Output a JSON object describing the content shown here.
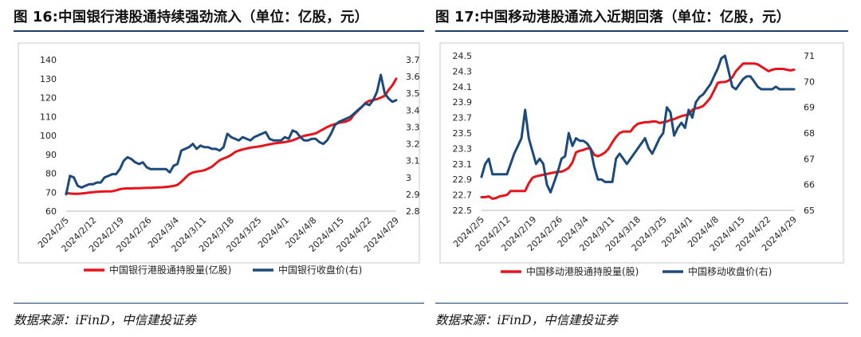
{
  "chart_data": [
    {
      "type": "line",
      "title": "图 16:中国银行港股通持续强劲流入（单位：亿股，元）",
      "source": "数据来源：iFinD，中信建投证券",
      "categories": [
        "2024/2/5",
        "2024/2/12",
        "2024/2/19",
        "2024/2/26",
        "2024/3/4",
        "2024/3/11",
        "2024/3/18",
        "2024/3/25",
        "2024/4/1",
        "2024/4/8",
        "2024/4/15",
        "2024/4/22",
        "2024/4/29"
      ],
      "y_left": {
        "min": 60,
        "max": 140,
        "ticks": [
          "60",
          "70",
          "80",
          "90",
          "100",
          "110",
          "120",
          "130",
          "140"
        ]
      },
      "y_right": {
        "min": 2.8,
        "max": 3.7,
        "ticks": [
          "2.8",
          "2.9",
          "3",
          "3.1",
          "3.2",
          "3.3",
          "3.4",
          "3.5",
          "3.6",
          "3.7"
        ]
      },
      "legend_position": "bottom",
      "series": [
        {
          "name": "中国银行港股通持股量(亿股)",
          "axis": "left",
          "color": "#e8141b",
          "x": [
            0,
            1,
            2,
            3,
            4,
            5,
            6,
            7,
            8,
            9,
            10,
            11,
            12,
            13,
            14,
            15,
            16,
            17,
            18,
            19,
            20,
            21,
            22,
            23,
            24,
            25,
            26,
            27,
            28,
            29,
            30,
            31,
            32,
            33,
            34,
            35,
            36,
            37,
            38,
            39,
            40,
            41,
            42,
            43,
            44,
            45,
            46,
            47,
            48,
            49,
            50,
            51,
            52,
            53,
            54,
            55,
            56,
            57,
            58,
            59,
            60,
            61,
            62,
            63,
            64,
            65,
            66,
            67,
            68,
            69,
            70,
            71,
            72,
            73,
            74,
            75,
            76,
            77,
            78,
            79,
            80,
            81,
            82,
            83,
            84,
            85,
            86
          ],
          "values": [
            69.5,
            69.3,
            69.2,
            69.2,
            69.3,
            69.5,
            69.8,
            70.0,
            70.2,
            70.3,
            70.4,
            70.4,
            70.5,
            71.0,
            71.6,
            71.9,
            72.0,
            72.0,
            72.1,
            72.1,
            72.2,
            72.3,
            72.3,
            72.4,
            72.5,
            72.6,
            72.8,
            73.0,
            73.3,
            73.9,
            75.5,
            77.5,
            79.4,
            80.4,
            80.9,
            81.2,
            81.6,
            82.5,
            83.5,
            85.2,
            86.9,
            87.8,
            88.6,
            89.7,
            91.2,
            92.0,
            92.6,
            93.1,
            93.5,
            93.8,
            94.1,
            94.4,
            94.9,
            95.3,
            95.7,
            96.0,
            96.2,
            96.5,
            96.9,
            97.4,
            98.2,
            99.1,
            99.8,
            100.2,
            100.6,
            101.1,
            102.2,
            103.3,
            104.4,
            105.3,
            106.0,
            106.6,
            107.0,
            107.4,
            108.3,
            111.0,
            113.0,
            115.0,
            117.2,
            118.3,
            118.7,
            119.2,
            120.0,
            121.0,
            124.0,
            126.5,
            130.0
          ]
        },
        {
          "name": "中国银行收盘价(右)",
          "axis": "right",
          "color": "#1c4a7a",
          "x": [
            0,
            1,
            2,
            3,
            4,
            5,
            6,
            7,
            8,
            9,
            10,
            11,
            12,
            13,
            14,
            15,
            16,
            17,
            18,
            19,
            20,
            21,
            22,
            23,
            24,
            25,
            26,
            27,
            28,
            29,
            30,
            31,
            32,
            33,
            34,
            35,
            36,
            37,
            38,
            39,
            40,
            41,
            42,
            43,
            44,
            45,
            46,
            47,
            48,
            49,
            50,
            51,
            52,
            53,
            54,
            55,
            56,
            57,
            58,
            59,
            60,
            61,
            62,
            63,
            64,
            65,
            66,
            67,
            68,
            69,
            70,
            71,
            72,
            73,
            74,
            75,
            76,
            77,
            78,
            79,
            80,
            81,
            82,
            83,
            84,
            85,
            86
          ],
          "values": [
            2.9,
            3.01,
            3.0,
            2.95,
            2.94,
            2.95,
            2.96,
            2.96,
            2.97,
            2.97,
            3.0,
            3.01,
            3.02,
            3.02,
            3.05,
            3.1,
            3.12,
            3.11,
            3.09,
            3.08,
            3.09,
            3.06,
            3.05,
            3.05,
            3.05,
            3.05,
            3.05,
            3.03,
            3.07,
            3.08,
            3.16,
            3.17,
            3.18,
            3.2,
            3.17,
            3.19,
            3.18,
            3.18,
            3.17,
            3.17,
            3.16,
            3.18,
            3.26,
            3.24,
            3.23,
            3.22,
            3.24,
            3.23,
            3.22,
            3.24,
            3.25,
            3.26,
            3.27,
            3.23,
            3.22,
            3.22,
            3.22,
            3.24,
            3.23,
            3.28,
            3.27,
            3.24,
            3.22,
            3.22,
            3.23,
            3.23,
            3.21,
            3.2,
            3.22,
            3.26,
            3.31,
            3.33,
            3.34,
            3.35,
            3.36,
            3.38,
            3.4,
            3.42,
            3.44,
            3.43,
            3.46,
            3.51,
            3.61,
            3.5,
            3.47,
            3.45,
            3.46
          ]
        }
      ]
    },
    {
      "type": "line",
      "title": "图 17:中国移动港股通流入近期回落（单位：亿股，元）",
      "source": "数据来源：iFinD，中信建投证券",
      "categories": [
        "2024/2/5",
        "2024/2/12",
        "2024/2/19",
        "2024/2/26",
        "2024/3/4",
        "2024/3/11",
        "2024/3/18",
        "2024/3/25",
        "2024/4/1",
        "2024/4/8",
        "2024/4/15",
        "2024/4/22",
        "2024/4/29"
      ],
      "y_left": {
        "min": 22.5,
        "max": 24.5,
        "ticks": [
          "22.5",
          "22.7",
          "22.9",
          "23.1",
          "23.3",
          "23.5",
          "23.7",
          "23.9",
          "24.1",
          "24.3",
          "24.5"
        ]
      },
      "y_right": {
        "min": 65,
        "max": 71,
        "ticks": [
          "65",
          "66",
          "67",
          "68",
          "69",
          "70",
          "71"
        ]
      },
      "legend_position": "bottom",
      "series": [
        {
          "name": "中国移动港股通持股量(股)",
          "axis": "left",
          "color": "#e8141b",
          "x": [
            0,
            1,
            2,
            3,
            4,
            5,
            6,
            7,
            8,
            9,
            10,
            11,
            12,
            13,
            14,
            15,
            16,
            17,
            18,
            19,
            20,
            21,
            22,
            23,
            24,
            25,
            26,
            27,
            28,
            29,
            30,
            31,
            32,
            33,
            34,
            35,
            36,
            37,
            38,
            39,
            40,
            41,
            42,
            43,
            44,
            45,
            46,
            47,
            48,
            49,
            50,
            51,
            52,
            53,
            54,
            55,
            56,
            57,
            58,
            59,
            60,
            61,
            62,
            63,
            64,
            65,
            66,
            67,
            68,
            69,
            70,
            71,
            72,
            73,
            74,
            75,
            76,
            77,
            78,
            79,
            80,
            81,
            82,
            83,
            84,
            85,
            86
          ],
          "values": [
            22.67,
            22.67,
            22.68,
            22.65,
            22.66,
            22.68,
            22.69,
            22.7,
            22.75,
            22.75,
            22.75,
            22.75,
            22.75,
            22.85,
            22.92,
            22.94,
            22.95,
            22.96,
            22.97,
            22.98,
            22.99,
            23.0,
            23.0,
            23.02,
            23.05,
            23.12,
            23.25,
            23.27,
            23.28,
            23.3,
            23.3,
            23.22,
            23.2,
            23.22,
            23.25,
            23.3,
            23.38,
            23.45,
            23.5,
            23.52,
            23.52,
            23.52,
            23.58,
            23.62,
            23.63,
            23.64,
            23.64,
            23.65,
            23.65,
            23.63,
            23.64,
            23.65,
            23.67,
            23.68,
            23.7,
            23.72,
            23.73,
            23.74,
            23.8,
            23.82,
            23.83,
            23.85,
            23.9,
            23.96,
            24.05,
            24.15,
            24.16,
            24.16,
            24.18,
            24.22,
            24.3,
            24.35,
            24.4,
            24.4,
            24.4,
            24.4,
            24.39,
            24.36,
            24.33,
            24.3,
            24.32,
            24.33,
            24.33,
            24.33,
            24.32,
            24.31,
            24.32
          ]
        },
        {
          "name": "中国移动收盘价(右)",
          "axis": "right",
          "color": "#1c4a7a",
          "x": [
            0,
            1,
            2,
            3,
            4,
            5,
            6,
            7,
            8,
            9,
            10,
            11,
            12,
            13,
            14,
            15,
            16,
            17,
            18,
            19,
            20,
            21,
            22,
            23,
            24,
            25,
            26,
            27,
            28,
            29,
            30,
            31,
            32,
            33,
            34,
            35,
            36,
            37,
            38,
            39,
            40,
            41,
            42,
            43,
            44,
            45,
            46,
            47,
            48,
            49,
            50,
            51,
            52,
            53,
            54,
            55,
            56,
            57,
            58,
            59,
            60,
            61,
            62,
            63,
            64,
            65,
            66,
            67,
            68,
            69,
            70,
            71,
            72,
            73,
            74,
            75,
            76,
            77,
            78,
            79,
            80,
            81,
            82,
            83,
            84,
            85,
            86
          ],
          "values": [
            66.3,
            66.8,
            67.0,
            66.4,
            66.4,
            66.4,
            66.4,
            66.4,
            66.8,
            67.2,
            67.5,
            67.8,
            68.9,
            67.8,
            67.3,
            66.8,
            67.0,
            66.8,
            66.0,
            65.7,
            66.1,
            66.5,
            67.0,
            67.1,
            68.0,
            67.5,
            67.8,
            67.7,
            67.7,
            67.6,
            67.4,
            66.7,
            66.2,
            66.2,
            66.1,
            66.1,
            66.1,
            67.0,
            67.2,
            67.0,
            66.8,
            67.0,
            67.2,
            67.4,
            67.6,
            67.8,
            67.4,
            67.2,
            67.5,
            67.8,
            68.0,
            69.0,
            68.8,
            67.9,
            68.2,
            68.4,
            68.2,
            68.9,
            68.6,
            69.2,
            69.4,
            69.5,
            69.7,
            69.9,
            70.2,
            70.5,
            70.9,
            71.0,
            70.4,
            69.8,
            69.7,
            69.9,
            70.1,
            70.2,
            70.2,
            70.0,
            69.8,
            69.7,
            69.7,
            69.7,
            69.7,
            69.8,
            69.7,
            69.7,
            69.7,
            69.7,
            69.7
          ]
        }
      ]
    }
  ]
}
